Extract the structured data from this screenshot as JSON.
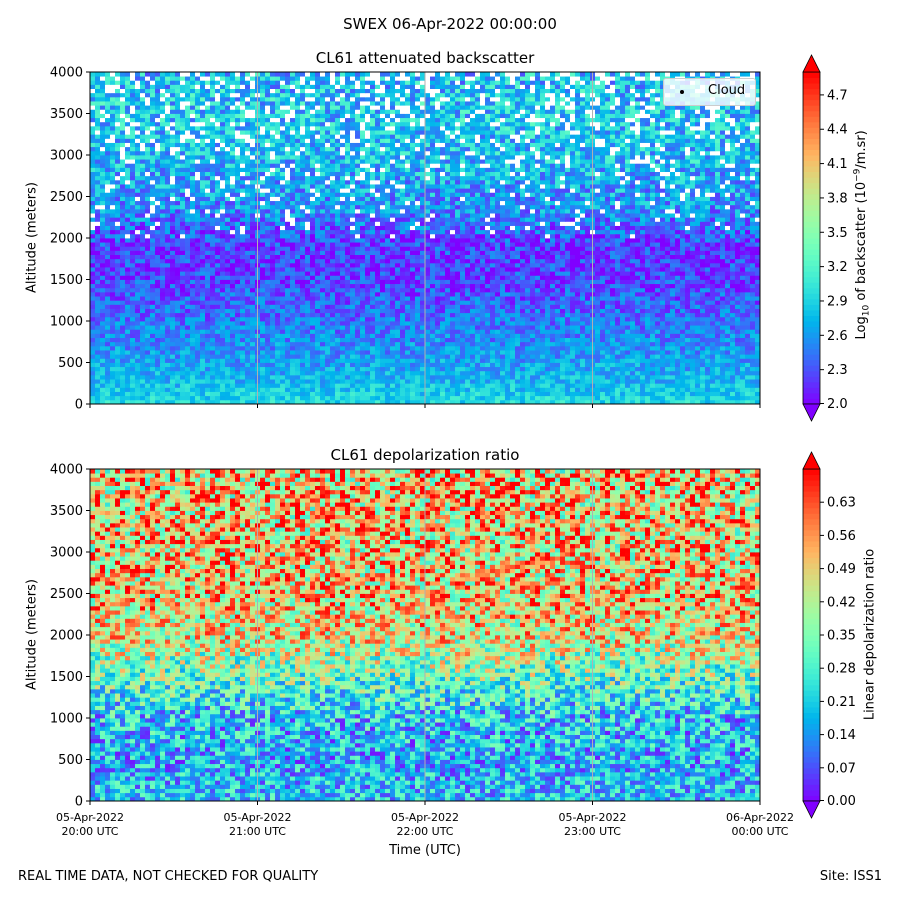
{
  "suptitle": "SWEX 06-Apr-2022 00:00:00",
  "footer_left": "REAL TIME DATA, NOT CHECKED FOR QUALITY",
  "footer_right": "Site: ISS1",
  "xlabel": "Time (UTC)",
  "chart_data": [
    {
      "type": "heatmap",
      "title": "CL61 attenuated backscatter",
      "ylabel": "Altitude (meters)",
      "xlabel": "",
      "ylim": [
        0,
        4000
      ],
      "yticks": [
        0,
        500,
        1000,
        1500,
        2000,
        2500,
        3000,
        3500,
        4000
      ],
      "xticks": [],
      "colorbar": {
        "label_prefix": "Log",
        "label_sub": "10",
        "label_mid": " of backscatter (10",
        "label_sup": "−9",
        "label_suffix": "/m.sr)",
        "min": 2.0,
        "max": 4.9,
        "ticks": [
          2.0,
          2.3,
          2.6,
          2.9,
          3.2,
          3.5,
          3.8,
          4.1,
          4.4,
          4.7
        ],
        "colormap": "rainbow",
        "extend": "both"
      },
      "legend": {
        "label": "Cloud",
        "placement": "top-right"
      },
      "profile": [
        {
          "alt": 0,
          "value": 2.95
        },
        {
          "alt": 300,
          "value": 2.75
        },
        {
          "alt": 600,
          "value": 2.6
        },
        {
          "alt": 1000,
          "value": 2.45
        },
        {
          "alt": 1500,
          "value": 2.25
        },
        {
          "alt": 1900,
          "value": 2.2
        },
        {
          "alt": 2300,
          "value": 2.55
        },
        {
          "alt": 3000,
          "value": 2.8
        },
        {
          "alt": 3600,
          "value": 2.85
        },
        {
          "alt": 4000,
          "value": 2.75
        }
      ]
    },
    {
      "type": "heatmap",
      "title": "CL61 depolarization ratio",
      "ylabel": "Altitude (meters)",
      "xlabel": "Time (UTC)",
      "ylim": [
        0,
        4000
      ],
      "yticks": [
        0,
        500,
        1000,
        1500,
        2000,
        2500,
        3000,
        3500,
        4000
      ],
      "xticks": [
        {
          "line1": "05-Apr-2022",
          "line2": "20:00 UTC"
        },
        {
          "line1": "05-Apr-2022",
          "line2": "21:00 UTC"
        },
        {
          "line1": "05-Apr-2022",
          "line2": "22:00 UTC"
        },
        {
          "line1": "05-Apr-2022",
          "line2": "23:00 UTC"
        },
        {
          "line1": "06-Apr-2022",
          "line2": "00:00 UTC"
        }
      ],
      "colorbar": {
        "label": "Linear depolarization ratio",
        "min": 0.0,
        "max": 0.7,
        "ticks": [
          0.0,
          0.07,
          0.14,
          0.21,
          0.28,
          0.35,
          0.42,
          0.49,
          0.56,
          0.63
        ],
        "colormap": "rainbow",
        "extend": "both"
      },
      "profile": [
        {
          "alt": 0,
          "value": 0.2
        },
        {
          "alt": 500,
          "value": 0.17
        },
        {
          "alt": 1000,
          "value": 0.2
        },
        {
          "alt": 1500,
          "value": 0.33
        },
        {
          "alt": 2000,
          "value": 0.47
        },
        {
          "alt": 2500,
          "value": 0.5
        },
        {
          "alt": 3000,
          "value": 0.5
        },
        {
          "alt": 4000,
          "value": 0.52
        }
      ]
    }
  ]
}
